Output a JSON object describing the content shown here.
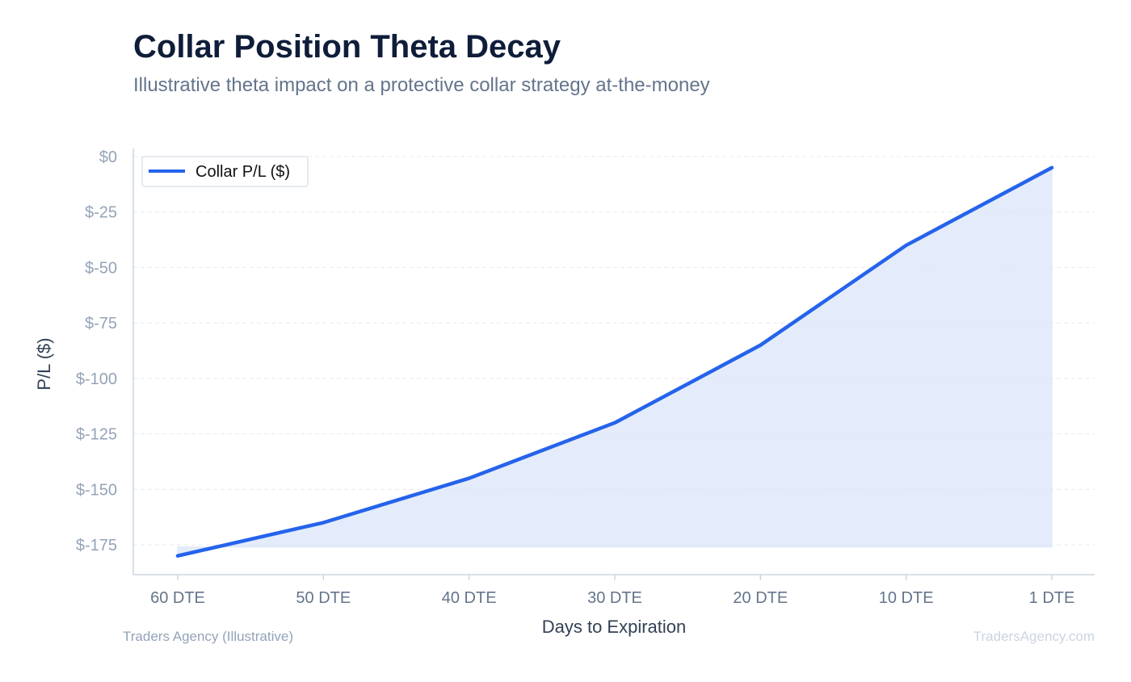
{
  "header": {
    "title": "Collar Position Theta Decay",
    "subtitle": "Illustrative theta impact on a protective collar strategy at-the-money"
  },
  "footer": {
    "source_left": "Traders Agency (Illustrative)",
    "source_right": "TradersAgency.com"
  },
  "colors": {
    "line": "#2563eb",
    "fill": "#dbe6fa",
    "grid": "#e5e9f0",
    "axis": "#cbd5e1"
  },
  "chart_data": {
    "type": "area",
    "categories": [
      "60 DTE",
      "50 DTE",
      "40 DTE",
      "30 DTE",
      "20 DTE",
      "10 DTE",
      "1 DTE"
    ],
    "series": [
      {
        "name": "Collar P/L ($)",
        "values": [
          -180,
          -165,
          -145,
          -120,
          -85,
          -40,
          -5
        ]
      }
    ],
    "xlabel": "Days to Expiration",
    "ylabel": "P/L ($)",
    "ylim": [
      -185,
      4
    ],
    "yticks": [
      0,
      -25,
      -50,
      -75,
      -100,
      -125,
      -150,
      -175
    ],
    "ytick_labels": [
      "$0",
      "$-25",
      "$-50",
      "$-75",
      "$-100",
      "$-125",
      "$-150",
      "$-175"
    ],
    "fill_baseline": -176,
    "grid": true,
    "legend_position": "top-left"
  }
}
